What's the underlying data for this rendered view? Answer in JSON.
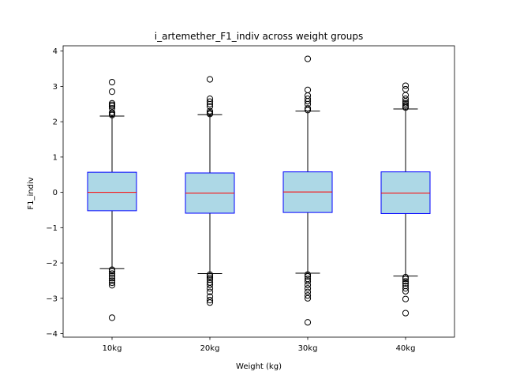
{
  "chart_data": {
    "type": "box",
    "title": "i_artemether_F1_indiv across weight groups",
    "xlabel": "Weight (kg)",
    "ylabel": "F1_indiv",
    "ylim": [
      -4.1,
      4.15
    ],
    "yticks": [
      -4,
      -3,
      -2,
      -1,
      0,
      1,
      2,
      3,
      4
    ],
    "yticklabels": [
      "−4",
      "−3",
      "−2",
      "−1",
      "0",
      "1",
      "2",
      "3",
      "4"
    ],
    "grid": false,
    "colors": {
      "box_fill": "#add8e6",
      "box_edge": "#0000ff",
      "median": "#ff0000",
      "whisker": "#000000",
      "flier": "#000000"
    },
    "categories": [
      "10kg",
      "20kg",
      "30kg",
      "40kg"
    ],
    "boxes": [
      {
        "category": "10kg",
        "q1": -0.52,
        "median": 0.0,
        "q3": 0.57,
        "whisker_low": -2.16,
        "whisker_high": 2.16,
        "fliers": [
          3.12,
          2.85,
          2.52,
          2.48,
          2.44,
          2.38,
          2.26,
          2.22,
          2.19,
          -2.19,
          -2.23,
          -2.3,
          -2.37,
          -2.43,
          -2.5,
          -2.56,
          -2.63,
          -3.55
        ]
      },
      {
        "category": "20kg",
        "q1": -0.59,
        "median": -0.02,
        "q3": 0.55,
        "whisker_low": -2.3,
        "whisker_high": 2.2,
        "fliers": [
          3.2,
          2.65,
          2.57,
          2.5,
          2.43,
          2.3,
          2.25,
          2.22,
          -2.33,
          -2.37,
          -2.42,
          -2.47,
          -2.55,
          -2.62,
          -2.72,
          -2.82,
          -2.95,
          -3.05,
          -3.12
        ]
      },
      {
        "category": "30kg",
        "q1": -0.57,
        "median": 0.01,
        "q3": 0.58,
        "whisker_low": -2.29,
        "whisker_high": 2.3,
        "fliers": [
          3.78,
          2.9,
          2.74,
          2.65,
          2.58,
          2.5,
          2.38,
          2.33,
          -2.33,
          -2.38,
          -2.45,
          -2.52,
          -2.62,
          -2.72,
          -2.82,
          -2.92,
          -3.0,
          -3.68
        ]
      },
      {
        "category": "40kg",
        "q1": -0.6,
        "median": -0.02,
        "q3": 0.58,
        "whisker_low": -2.37,
        "whisker_high": 2.36,
        "fliers": [
          3.02,
          2.92,
          2.75,
          2.65,
          2.58,
          2.52,
          2.47,
          2.43,
          2.4,
          -2.4,
          -2.45,
          -2.52,
          -2.58,
          -2.65,
          -2.72,
          -2.8,
          -3.02,
          -3.42
        ]
      }
    ]
  }
}
